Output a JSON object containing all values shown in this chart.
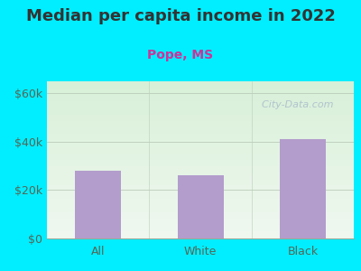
{
  "title": "Median per capita income in 2022",
  "subtitle": "Pope, MS",
  "categories": [
    "All",
    "White",
    "Black"
  ],
  "values": [
    28000,
    26000,
    41000
  ],
  "bar_color": "#b39dcc",
  "outer_bg": "#00eeff",
  "chart_bg_top": "#f0f8f0",
  "chart_bg_bottom": "#d8f0d8",
  "subtitle_color": "#cc3399",
  "title_color": "#333333",
  "tick_label_color": "#556655",
  "yticks": [
    0,
    20000,
    40000,
    60000
  ],
  "ytick_labels": [
    "$0",
    "$20k",
    "$40k",
    "$60k"
  ],
  "ylim": [
    0,
    65000
  ],
  "title_fontsize": 13,
  "subtitle_fontsize": 10,
  "tick_fontsize": 9,
  "watermark": "  City-Data.com",
  "watermark_color": "#aabbcc"
}
